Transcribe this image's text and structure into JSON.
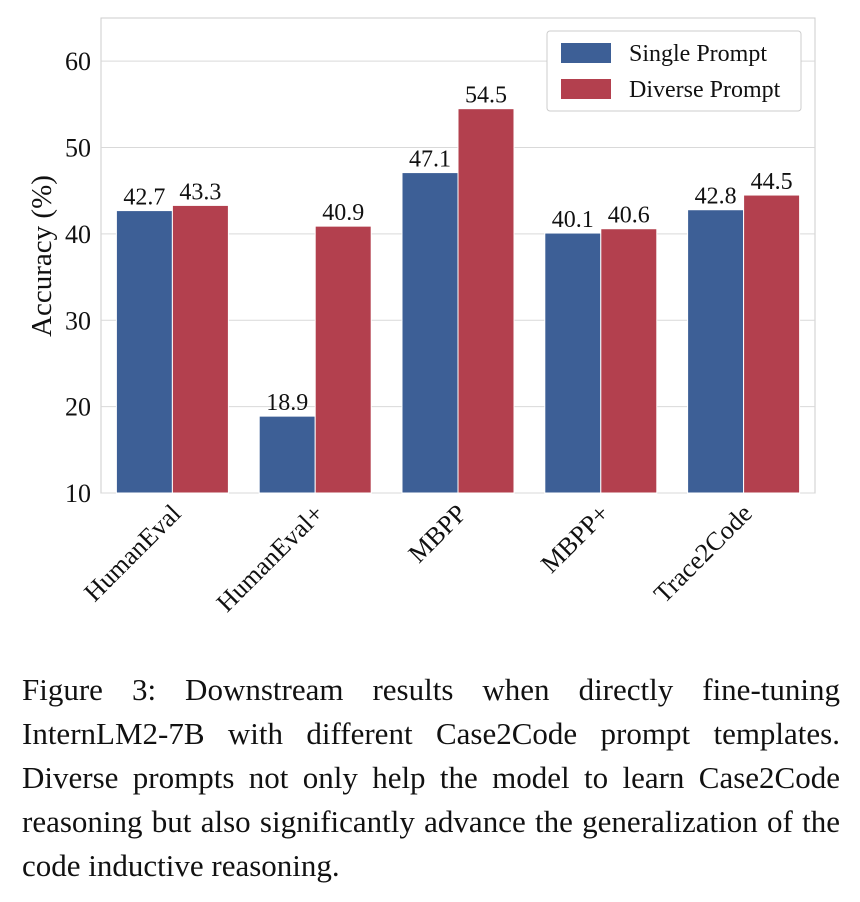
{
  "chart_data": {
    "type": "bar",
    "title": "",
    "xlabel": "",
    "ylabel": "Accuracy (%)",
    "ylim": [
      10,
      65
    ],
    "yticks": [
      "10",
      "20",
      "30",
      "40",
      "50",
      "60"
    ],
    "grid": true,
    "legend_position": "top-right",
    "categories": [
      "HumanEval",
      "HumanEval+",
      "MBPP",
      "MBPP+",
      "Trace2Code"
    ],
    "series": [
      {
        "name": "Single Prompt",
        "color": "#3d5f96",
        "values": [
          42.7,
          18.9,
          47.1,
          40.1,
          42.8
        ],
        "labels": [
          "42.7",
          "18.9",
          "47.1",
          "40.1",
          "42.8"
        ]
      },
      {
        "name": "Diverse Prompt",
        "color": "#b3404e",
        "values": [
          43.3,
          40.9,
          54.5,
          40.6,
          44.5
        ],
        "labels": [
          "43.3",
          "40.9",
          "54.5",
          "40.6",
          "44.5"
        ]
      }
    ]
  },
  "caption": "Figure 3: Downstream results when directly fine-tuning InternLM2-7B with different Case2Code prompt templates. Diverse prompts not only help the model to learn Case2Code reasoning but also significantly advance the generalization of the code inductive reasoning."
}
